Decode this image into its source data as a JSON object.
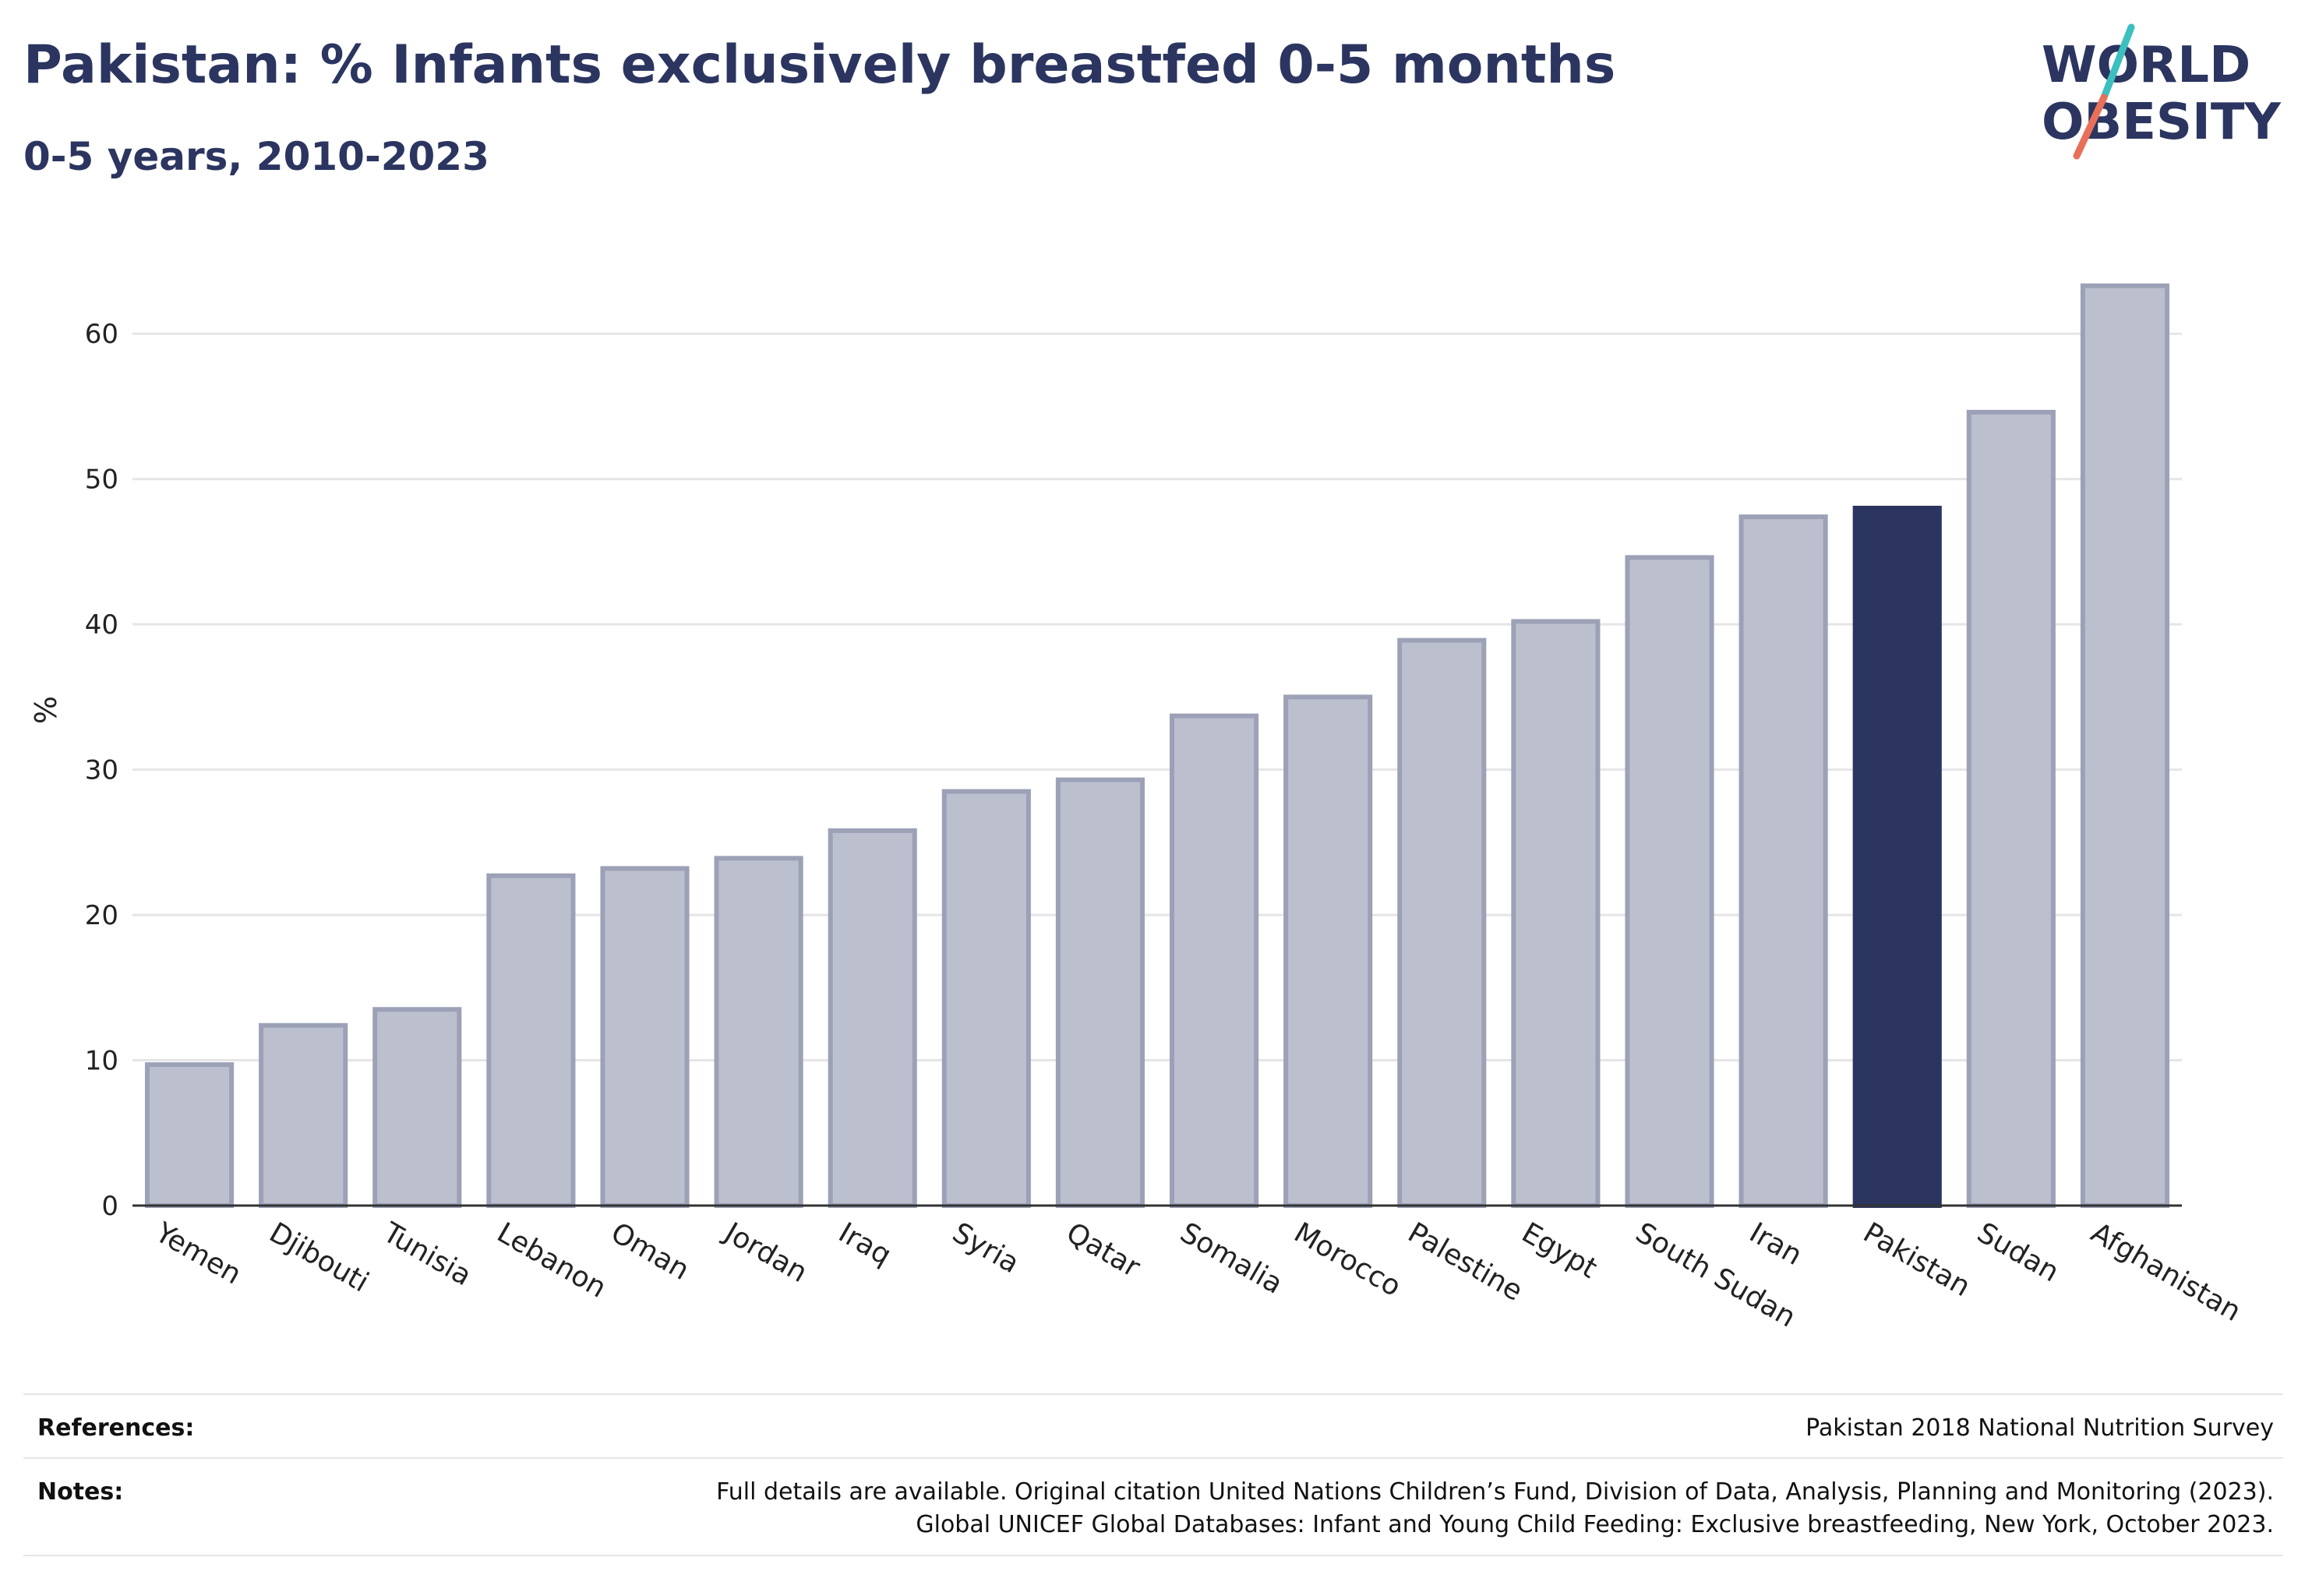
{
  "header": {
    "title": "Pakistan: % Infants exclusively breastfed 0-5 months",
    "subtitle": "0-5 years, 2010-2023",
    "logo_line1": "WORLD",
    "logo_line2": "OBESITY"
  },
  "chart_data": {
    "type": "bar",
    "ylabel": "%",
    "ylim": [
      0,
      65
    ],
    "yticks": [
      0,
      10,
      20,
      30,
      40,
      50,
      60
    ],
    "grid": true,
    "highlight": "Pakistan",
    "colors": {
      "bar": "#bcc0ce",
      "bar_border": "#9ca1b7",
      "highlight": "#2b3560",
      "grid": "#e5e5e8",
      "axis": "#333333"
    },
    "categories": [
      "Yemen",
      "Djibouti",
      "Tunisia",
      "Lebanon",
      "Oman",
      "Jordan",
      "Iraq",
      "Syria",
      "Qatar",
      "Somalia",
      "Morocco",
      "Palestine",
      "Egypt",
      "South Sudan",
      "Iran",
      "Pakistan",
      "Sudan",
      "Afghanistan"
    ],
    "values": [
      9.7,
      12.4,
      13.5,
      22.7,
      23.2,
      23.9,
      25.8,
      28.5,
      29.3,
      33.7,
      35.0,
      38.9,
      40.2,
      44.6,
      47.4,
      48.0,
      54.6,
      63.3
    ]
  },
  "footer": {
    "references_label": "References:",
    "references_text": "Pakistan 2018 National Nutrition Survey",
    "notes_label": "Notes:",
    "notes_line1": "Full details are available. Original citation United Nations Children’s Fund, Division of Data, Analysis, Planning and Monitoring (2023).",
    "notes_line2": "Global UNICEF Global Databases: Infant and Young Child Feeding: Exclusive breastfeeding, New York, October 2023."
  }
}
